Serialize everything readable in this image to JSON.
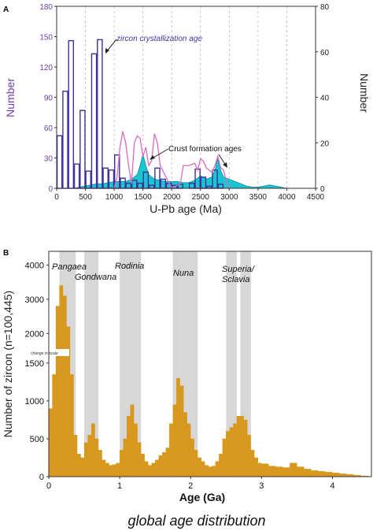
{
  "chart_data": [
    {
      "panel_label": "A",
      "type": "bar",
      "title": "",
      "xlabel": "U-Pb age (Ma)",
      "ylabel": "Number",
      "y2label": "Number",
      "xlim": [
        0,
        4500
      ],
      "ylim": [
        0,
        180
      ],
      "y2lim": [
        0,
        80
      ],
      "xticks": [
        0,
        500,
        1000,
        1500,
        2000,
        2500,
        3000,
        3500,
        4000,
        4500
      ],
      "yticks": [
        0,
        30,
        60,
        90,
        120,
        150,
        180
      ],
      "y2ticks": [
        0,
        20,
        40,
        60,
        80
      ],
      "grid": "vertical dashed",
      "series": [
        {
          "name": "zircon crystallization age",
          "type": "histogram",
          "axis": "left",
          "bin_width": 100,
          "bin_starts": [
            0,
            100,
            200,
            300,
            400,
            500,
            600,
            700,
            800,
            900,
            1000,
            1100,
            1200,
            1300,
            1400,
            1500,
            1600,
            1700,
            1800,
            1900,
            2000,
            2100,
            2200,
            2300,
            2400,
            2500,
            2600,
            2700,
            2800,
            2900,
            3000,
            3100,
            3200,
            3300,
            3400,
            3500,
            3600,
            3700,
            3800,
            3900
          ],
          "values": [
            52,
            96,
            146,
            24,
            77,
            17,
            133,
            147,
            20,
            18,
            33,
            10,
            5,
            8,
            5,
            16,
            3,
            20,
            9,
            5,
            3,
            4,
            0,
            5,
            19,
            11,
            2,
            18,
            4,
            0,
            0,
            0,
            0,
            0,
            0,
            0,
            0,
            0,
            0,
            0
          ]
        },
        {
          "name": "Crust formation ages",
          "type": "area",
          "axis": "right",
          "x": [
            300,
            400,
            500,
            600,
            700,
            800,
            900,
            1000,
            1100,
            1200,
            1300,
            1400,
            1450,
            1500,
            1550,
            1600,
            1700,
            1800,
            1900,
            2000,
            2100,
            2200,
            2300,
            2400,
            2500,
            2600,
            2700,
            2750,
            2800,
            2850,
            2900,
            3000,
            3100,
            3200,
            3300,
            3400,
            3500,
            3600,
            3700,
            3800,
            3900,
            4000
          ],
          "values": [
            0,
            0.5,
            1,
            1.5,
            2,
            2,
            2.5,
            3,
            3,
            3,
            4,
            6,
            10,
            15,
            10,
            6,
            4,
            3.5,
            3,
            3,
            3,
            2.5,
            2.5,
            3.5,
            5.5,
            4,
            5,
            8,
            13,
            8,
            5,
            4,
            3,
            2,
            1,
            0.5,
            0.5,
            1,
            1.5,
            1,
            0.5,
            0
          ]
        },
        {
          "name": "pink curve",
          "type": "line",
          "color": "#d96bc3",
          "axis": "right",
          "x": [
            1000,
            1050,
            1100,
            1150,
            1200,
            1250,
            1300,
            1350,
            1400,
            1450,
            1500,
            1550,
            1600,
            1650,
            1700,
            1750,
            1800,
            2000,
            2150,
            2200,
            2300,
            2400,
            2450,
            2500,
            2550,
            2600,
            2700,
            2750,
            2800,
            2850,
            2900,
            2950,
            3000
          ],
          "values": [
            0,
            5,
            18,
            25,
            20,
            10,
            2,
            20,
            23,
            22,
            14,
            18,
            10,
            12,
            24,
            20,
            10,
            0,
            2,
            10,
            10,
            11,
            8,
            13,
            12,
            9,
            7,
            10,
            14,
            9,
            8,
            3,
            0
          ]
        }
      ],
      "annotations": [
        "zircon crystallization age",
        "Crust formation ages"
      ],
      "colors": {
        "histogram": "#3f2f9e",
        "area": "#19c6cf",
        "area_edge": "#0c8f9e",
        "pink": "#d96bc3",
        "axis_text": "#6b3db3"
      }
    },
    {
      "panel_label": "B",
      "type": "bar",
      "title": "",
      "xlabel": "Age (Ga)",
      "ylabel": "Number of zircon (n=100,445)",
      "subtitle": "global age distribution",
      "xlim": [
        0,
        4.55
      ],
      "xticks": [
        0,
        1,
        2,
        3,
        4
      ],
      "ytick_labels": [
        "0",
        "500",
        "1000",
        "1500",
        "2000",
        "3000",
        "4000"
      ],
      "ylim": [
        0,
        4400
      ],
      "scale_note": "change in scale",
      "scale_break_at": 1800,
      "shaded_periods": [
        {
          "name": "Pangaea",
          "start": 0.15,
          "end": 0.38
        },
        {
          "name": "Gondwana",
          "start": 0.5,
          "end": 0.7
        },
        {
          "name": "Rodinia",
          "start": 1.0,
          "end": 1.3
        },
        {
          "name": "Nuna",
          "start": 1.75,
          "end": 2.1
        },
        {
          "name": "Superia/",
          "name_line2": "Sclavia",
          "start": 2.5,
          "end": 2.65
        },
        {
          "name": "",
          "start": 2.7,
          "end": 2.85
        }
      ],
      "series": [
        {
          "name": "",
          "type": "histogram",
          "color": "#d8981e",
          "x": [
            0.0,
            0.05,
            0.1,
            0.15,
            0.2,
            0.25,
            0.3,
            0.35,
            0.4,
            0.45,
            0.5,
            0.55,
            0.6,
            0.65,
            0.7,
            0.75,
            0.8,
            0.85,
            0.9,
            0.95,
            1.0,
            1.05,
            1.1,
            1.15,
            1.2,
            1.25,
            1.3,
            1.35,
            1.4,
            1.45,
            1.5,
            1.55,
            1.6,
            1.65,
            1.7,
            1.75,
            1.8,
            1.85,
            1.9,
            1.95,
            2.0,
            2.05,
            2.1,
            2.15,
            2.2,
            2.25,
            2.3,
            2.35,
            2.4,
            2.45,
            2.5,
            2.55,
            2.6,
            2.65,
            2.7,
            2.75,
            2.8,
            2.85,
            2.9,
            2.95,
            3.0,
            3.1,
            3.2,
            3.3,
            3.4,
            3.5,
            3.6,
            3.7,
            3.8,
            3.9,
            4.0,
            4.1,
            4.2,
            4.3,
            4.4,
            4.5
          ],
          "values": [
            900,
            1350,
            2800,
            3400,
            3100,
            2200,
            1350,
            550,
            300,
            250,
            450,
            550,
            700,
            500,
            350,
            220,
            180,
            150,
            160,
            180,
            350,
            500,
            800,
            950,
            700,
            450,
            300,
            200,
            150,
            180,
            220,
            280,
            320,
            380,
            700,
            950,
            1300,
            1200,
            850,
            700,
            500,
            350,
            250,
            200,
            150,
            130,
            140,
            200,
            300,
            500,
            600,
            650,
            700,
            800,
            800,
            750,
            550,
            350,
            250,
            180,
            170,
            140,
            130,
            120,
            180,
            130,
            100,
            80,
            70,
            60,
            50,
            40,
            30,
            20,
            10,
            5
          ]
        }
      ]
    }
  ]
}
